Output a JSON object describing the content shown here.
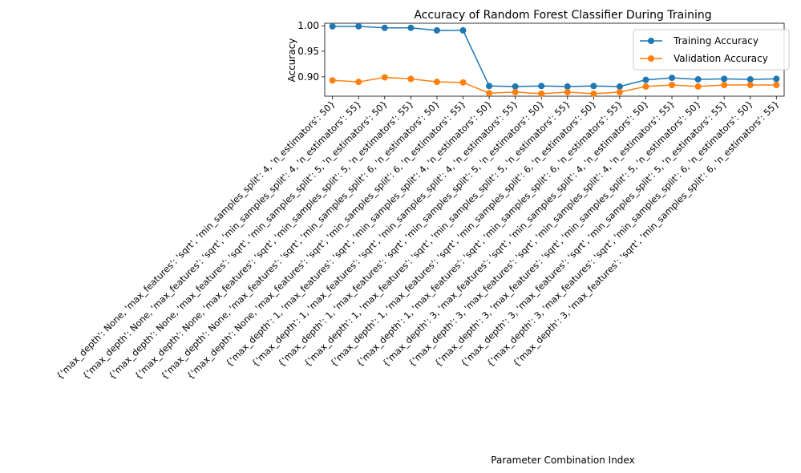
{
  "chart_data": {
    "type": "line",
    "title": "Accuracy of Random Forest Classifier During Training",
    "xlabel": "Parameter Combination Index",
    "ylabel": "Accuracy",
    "ylim": [
      0.862,
      1.005
    ],
    "yticks": [
      0.9,
      0.95,
      1.0
    ],
    "ytick_labels": [
      "0.90",
      "0.95",
      "1.00"
    ],
    "grid": false,
    "legend_position": "top-right",
    "categories": [
      "{'max_depth': None, 'max_features': 'sqrt', 'min_samples_split': 4, 'n_estimators': 50}",
      "{'max_depth': None, 'max_features': 'sqrt', 'min_samples_split': 4, 'n_estimators': 55}",
      "{'max_depth': None, 'max_features': 'sqrt', 'min_samples_split': 5, 'n_estimators': 50}",
      "{'max_depth': None, 'max_features': 'sqrt', 'min_samples_split': 5, 'n_estimators': 55}",
      "{'max_depth': None, 'max_features': 'sqrt', 'min_samples_split': 6, 'n_estimators': 50}",
      "{'max_depth': None, 'max_features': 'sqrt', 'min_samples_split': 6, 'n_estimators': 55}",
      "{'max_depth': 1, 'max_features': 'sqrt', 'min_samples_split': 4, 'n_estimators': 50}",
      "{'max_depth': 1, 'max_features': 'sqrt', 'min_samples_split': 4, 'n_estimators': 55}",
      "{'max_depth': 1, 'max_features': 'sqrt', 'min_samples_split': 5, 'n_estimators': 50}",
      "{'max_depth': 1, 'max_features': 'sqrt', 'min_samples_split': 5, 'n_estimators': 55}",
      "{'max_depth': 1, 'max_features': 'sqrt', 'min_samples_split': 6, 'n_estimators': 50}",
      "{'max_depth': 1, 'max_features': 'sqrt', 'min_samples_split': 6, 'n_estimators': 55}",
      "{'max_depth': 3, 'max_features': 'sqrt', 'min_samples_split': 4, 'n_estimators': 50}",
      "{'max_depth': 3, 'max_features': 'sqrt', 'min_samples_split': 4, 'n_estimators': 55}",
      "{'max_depth': 3, 'max_features': 'sqrt', 'min_samples_split': 5, 'n_estimators': 50}",
      "{'max_depth': 3, 'max_features': 'sqrt', 'min_samples_split': 5, 'n_estimators': 55}",
      "{'max_depth': 3, 'max_features': 'sqrt', 'min_samples_split': 6, 'n_estimators': 50}",
      "{'max_depth': 3, 'max_features': 'sqrt', 'min_samples_split': 6, 'n_estimators': 55}"
    ],
    "series": [
      {
        "name": "Training Accuracy",
        "color": "#1f77b4",
        "values": [
          0.999,
          0.999,
          0.996,
          0.996,
          0.991,
          0.991,
          0.882,
          0.881,
          0.882,
          0.881,
          0.882,
          0.881,
          0.894,
          0.898,
          0.895,
          0.896,
          0.895,
          0.896
        ]
      },
      {
        "name": "Validation Accuracy",
        "color": "#ff7f0e",
        "values": [
          0.893,
          0.89,
          0.899,
          0.896,
          0.89,
          0.889,
          0.868,
          0.87,
          0.867,
          0.87,
          0.867,
          0.87,
          0.881,
          0.884,
          0.881,
          0.884,
          0.884,
          0.884
        ]
      }
    ]
  }
}
